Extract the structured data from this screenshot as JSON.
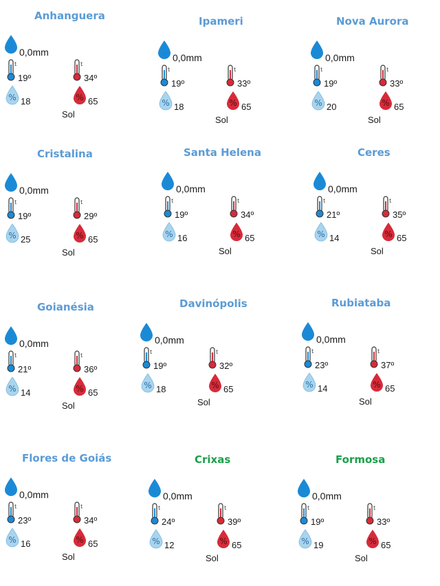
{
  "colors": {
    "city_blue": "#5b9bd5",
    "city_green": "#1aa04a",
    "rain_blue": "#1b8ad6",
    "hum_min_fill": "#a8d4ee",
    "hum_max_fill": "#d62b3a",
    "therm_min": "#1b8ad6",
    "therm_max": "#d62b3a"
  },
  "icons": {
    "rain": "water-drop-icon",
    "min_temp": "thermometer-min-icon",
    "max_temp": "thermometer-max-icon",
    "min_humidity": "humidity-drop-min-icon",
    "max_humidity": "humidity-drop-max-icon"
  },
  "cities": [
    {
      "name": "Anhanguera",
      "name_color": "blue",
      "rain": "0,0mm",
      "min_temp": "19º",
      "max_temp": "34º",
      "min_humidity": "18",
      "max_humidity": "65",
      "condition": "Sol"
    },
    {
      "name": "Ipameri",
      "name_color": "blue",
      "rain": "0,0mm",
      "min_temp": "19º",
      "max_temp": "33º",
      "min_humidity": "18",
      "max_humidity": "65",
      "condition": "Sol"
    },
    {
      "name": "Nova Aurora",
      "name_color": "blue",
      "rain": "0,0mm",
      "min_temp": "19º",
      "max_temp": "33º",
      "min_humidity": "20",
      "max_humidity": "65",
      "condition": "Sol"
    },
    {
      "name": "Cristalina",
      "name_color": "blue",
      "rain": "0,0mm",
      "min_temp": "19º",
      "max_temp": "29º",
      "min_humidity": "25",
      "max_humidity": "65",
      "condition": "Sol"
    },
    {
      "name": "Santa Helena",
      "name_color": "blue",
      "rain": "0,0mm",
      "min_temp": "19º",
      "max_temp": "34º",
      "min_humidity": "16",
      "max_humidity": "65",
      "condition": "Sol"
    },
    {
      "name": "Ceres",
      "name_color": "blue",
      "rain": "0,0mm",
      "min_temp": "21º",
      "max_temp": "35º",
      "min_humidity": "14",
      "max_humidity": "65",
      "condition": "Sol"
    },
    {
      "name": "Goianésia",
      "name_color": "blue",
      "rain": "0,0mm",
      "min_temp": "21º",
      "max_temp": "36º",
      "min_humidity": "14",
      "max_humidity": "65",
      "condition": "Sol"
    },
    {
      "name": "Davinópolis",
      "name_color": "blue",
      "rain": "0,0mm",
      "min_temp": "19º",
      "max_temp": "32º",
      "min_humidity": "18",
      "max_humidity": "65",
      "condition": "Sol"
    },
    {
      "name": "Rubiataba",
      "name_color": "blue",
      "rain": "0,0mm",
      "min_temp": "23º",
      "max_temp": "37º",
      "min_humidity": "14",
      "max_humidity": "65",
      "condition": "Sol"
    },
    {
      "name": "Flores de Goiás",
      "name_color": "blue",
      "rain": "0,0mm",
      "min_temp": "23º",
      "max_temp": "34º",
      "min_humidity": "16",
      "max_humidity": "65",
      "condition": "Sol"
    },
    {
      "name": "Crixas",
      "name_color": "green",
      "rain": "0,0mm",
      "min_temp": "24º",
      "max_temp": "39º",
      "min_humidity": "12",
      "max_humidity": "65",
      "condition": "Sol"
    },
    {
      "name": "Formosa",
      "name_color": "green",
      "rain": "0,0mm",
      "min_temp": "19º",
      "max_temp": "33º",
      "min_humidity": "19",
      "max_humidity": "65",
      "condition": "Sol"
    }
  ]
}
